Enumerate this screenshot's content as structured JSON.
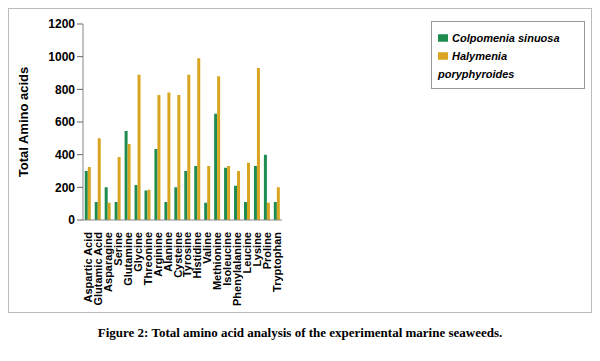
{
  "chart_data": {
    "type": "bar",
    "title": "Figure 2: Total amino acid analysis of the experimental marine seaweeds.",
    "y_label": "Total Amino acids",
    "categories": [
      "Aspartic Acid",
      "Glutamic Acid",
      "Asparagine",
      "Serine",
      "Glutamine",
      "Glycine",
      "Threonine",
      "Arginine",
      "Alanine",
      "Cysteine",
      "Tyrosine",
      "Histidine",
      "Valine",
      "Methionine",
      "Isoleucine",
      "Phenylalanine",
      "Leucine",
      "Lysine",
      "Proline",
      "Tryptophan"
    ],
    "series": [
      {
        "name": "Colpomenia sinuosa",
        "color": "#1e8c4e",
        "values": [
          300,
          110,
          200,
          110,
          545,
          215,
          180,
          435,
          110,
          200,
          300,
          330,
          105,
          650,
          320,
          210,
          110,
          330,
          400,
          110
        ]
      },
      {
        "name": "Halymenia poryphyroides",
        "color": "#d9a521",
        "values": [
          325,
          500,
          105,
          385,
          465,
          890,
          185,
          765,
          780,
          765,
          890,
          990,
          330,
          880,
          330,
          300,
          350,
          930,
          105,
          200
        ]
      }
    ],
    "ylim": [
      0,
      1200
    ],
    "yticks": [
      0,
      200,
      400,
      600,
      800,
      1000,
      1200
    ],
    "grid": false,
    "legend": "upper right"
  }
}
